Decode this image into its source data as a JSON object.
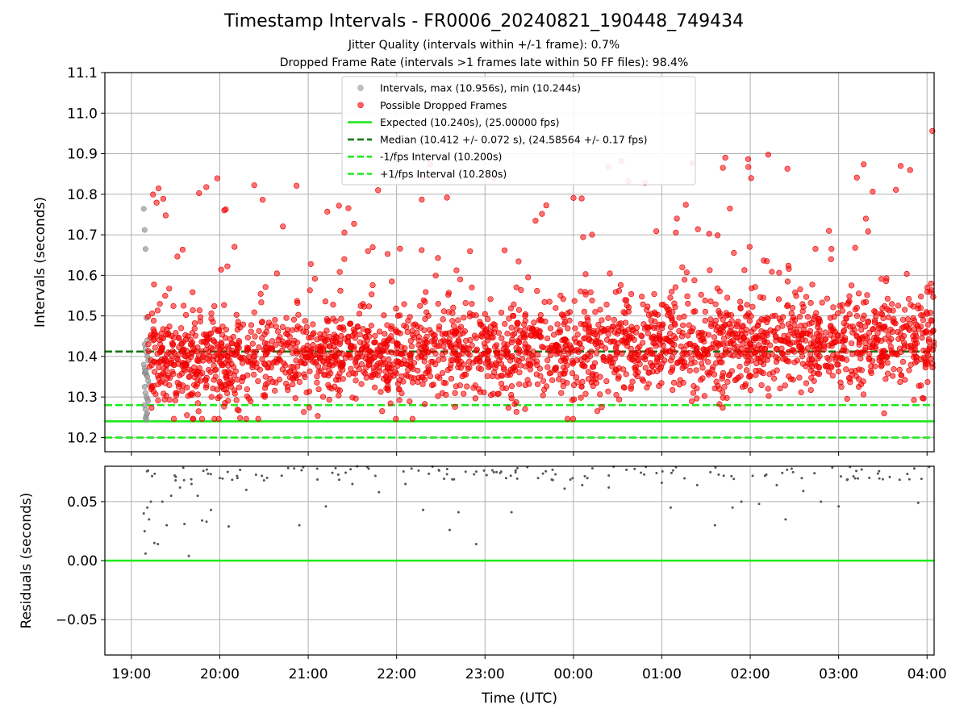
{
  "title": "Timestamp Intervals - FR0006_20240821_190448_749434",
  "subtitle_1": "Jitter Quality (intervals within +/-1 frame): 0.7%",
  "subtitle_2": "Dropped Frame Rate (intervals >1 frames late within 50 FF files): 98.4%",
  "chart_data": [
    {
      "type": "scatter",
      "ylabel": "Intervals (seconds)",
      "xlabel": "",
      "xlim_hours": [
        18.7,
        28.08
      ],
      "ylim": [
        10.165,
        11.1
      ],
      "yticks": [
        "10.2",
        "10.3",
        "10.4",
        "10.5",
        "10.6",
        "10.7",
        "10.8",
        "10.9",
        "11.0",
        "11.1"
      ],
      "grid": true,
      "legend_position": "upper center",
      "legend": [
        {
          "label": "Intervals, max (10.956s), min (10.244s)",
          "marker": "circle",
          "color": "#999999"
        },
        {
          "label": "Possible Dropped Frames",
          "marker": "circle",
          "color": "#ff0000"
        },
        {
          "label": "Expected (10.240s), (25.00000 fps)",
          "marker": "solid-line",
          "color": "#1ee81e"
        },
        {
          "label": "Median (10.412 +/- 0.072 s), (24.58564 +/- 0.17 fps)",
          "marker": "dashed-line",
          "color": "#137813"
        },
        {
          "label": "-1/fps Interval (10.200s)",
          "marker": "dashed-line",
          "color": "#1ee81e"
        },
        {
          "label": "+1/fps Interval (10.280s)",
          "marker": "dashed-line",
          "color": "#1ee81e"
        }
      ],
      "reference_lines": [
        {
          "name": "expected",
          "y": 10.24,
          "style": "solid",
          "color": "#1ee81e"
        },
        {
          "name": "median",
          "y": 10.412,
          "style": "dashed",
          "color": "#137813"
        },
        {
          "name": "minus-1-fps",
          "y": 10.2,
          "style": "dashed",
          "color": "#1ee81e"
        },
        {
          "name": "plus-1-fps",
          "y": 10.28,
          "style": "dashed",
          "color": "#1ee81e"
        }
      ],
      "series": [
        {
          "name": "Intervals",
          "color": "#999999",
          "x_hours": [
            19.14,
            19.15,
            19.16,
            19.17,
            19.18,
            19.15,
            19.16,
            19.17,
            19.18,
            19.19,
            19.14,
            19.15,
            19.16,
            19.17,
            19.18,
            19.19,
            19.2,
            19.15,
            19.16,
            19.17,
            19.18,
            19.19,
            19.15,
            19.16,
            19.18,
            19.17,
            19.16,
            19.17,
            19.15,
            19.16
          ],
          "y": [
            10.764,
            10.712,
            10.665,
            10.495,
            10.44,
            10.43,
            10.42,
            10.41,
            10.4,
            10.39,
            10.38,
            10.37,
            10.36,
            10.355,
            10.35,
            10.34,
            10.33,
            10.325,
            10.31,
            10.3,
            10.295,
            10.29,
            10.28,
            10.27,
            10.26,
            10.255,
            10.248,
            10.244,
            10.36,
            10.365
          ]
        },
        {
          "name": "Possible Dropped Frames",
          "color": "#ff0000",
          "x_range_hours": [
            19.18,
            28.08
          ],
          "count": 2600,
          "max": 10.956,
          "min": 10.244,
          "median": 10.412,
          "spread": 0.072
        }
      ]
    },
    {
      "type": "scatter",
      "ylabel": "Residuals (seconds)",
      "xlabel": "Time (UTC)",
      "xlim_hours": [
        18.7,
        28.08
      ],
      "ylim": [
        -0.08,
        0.08
      ],
      "yticks": [
        "−0.05",
        "0.00",
        "0.05"
      ],
      "xticks": [
        "19:00",
        "20:00",
        "21:00",
        "22:00",
        "23:00",
        "00:00",
        "01:00",
        "02:00",
        "03:00",
        "04:00"
      ],
      "grid": true,
      "zero_line_color": "#1ee81e",
      "series": [
        {
          "name": "Residuals",
          "color": "#555555",
          "x_hours": [
            19.14,
            19.15,
            19.16,
            19.18,
            19.2,
            19.26,
            19.3,
            19.22,
            19.35,
            19.4,
            19.5,
            19.6,
            19.65,
            19.68,
            19.75,
            19.8,
            19.85,
            19.9,
            20.0,
            20.1,
            20.3,
            20.5,
            20.7,
            20.9,
            21.2,
            21.5,
            21.8,
            22.1,
            22.3,
            22.6,
            22.7,
            22.9,
            23.1,
            23.3,
            23.6,
            23.9,
            24.1,
            24.4,
            24.6,
            24.8,
            25.0,
            25.1,
            25.4,
            25.6,
            25.7,
            25.9,
            26.1,
            26.3,
            26.6,
            26.8,
            27.0,
            27.2,
            27.5,
            27.8,
            27.9,
            26.4,
            25.8,
            19.45,
            19.55,
            20.2
          ],
          "y": [
            0.04,
            0.025,
            0.006,
            0.045,
            0.035,
            0.015,
            0.014,
            0.05,
            0.05,
            0.03,
            0.068,
            0.031,
            0.004,
            0.065,
            0.055,
            0.034,
            0.033,
            0.043,
            0.07,
            0.029,
            0.06,
            0.068,
            0.072,
            0.03,
            0.046,
            0.065,
            0.058,
            0.065,
            0.043,
            0.026,
            0.041,
            0.014,
            0.075,
            0.041,
            0.07,
            0.061,
            0.064,
            0.062,
            0.077,
            0.073,
            0.066,
            0.045,
            0.064,
            0.03,
            0.072,
            0.05,
            0.048,
            0.064,
            0.059,
            0.05,
            0.046,
            0.076,
            0.069,
            0.069,
            0.049,
            0.035,
            0.045,
            0.055,
            0.062,
            0.07
          ]
        }
      ]
    }
  ]
}
